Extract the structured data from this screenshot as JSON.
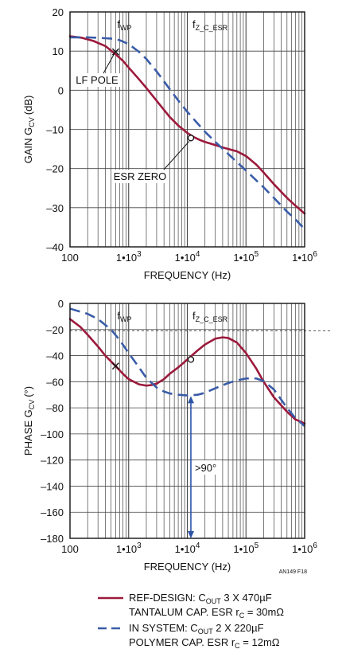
{
  "colors": {
    "ref": "#9c1a3c",
    "sys": "#3a5ca8",
    "annotation_arrow": "#2b53a8",
    "grid": "#444444"
  },
  "chart_data": [
    {
      "type": "line",
      "title": "",
      "xlabel": "FREQUENCY (Hz)",
      "ylabel": "GAIN G",
      "ylabel_sub": "CV",
      "ylabel_unit": "(dB)",
      "xscale": "log",
      "xlim": [
        100,
        1000000
      ],
      "ylim": [
        -40,
        20
      ],
      "yticks": [
        20,
        10,
        0,
        -10,
        -20,
        -30,
        -40
      ],
      "yticklabels": [
        "20",
        "10",
        "0",
        "–10",
        "–20",
        "–30",
        "–40"
      ],
      "xticks": [
        100,
        1000,
        10000,
        100000,
        1000000
      ],
      "xticklabels": [
        {
          "base": "100",
          "exp": ""
        },
        {
          "base": "1•10",
          "exp": "3"
        },
        {
          "base": "1•10",
          "exp": "4"
        },
        {
          "base": "1•10",
          "exp": "5"
        },
        {
          "base": "1•10",
          "exp": "6"
        }
      ],
      "grid": true,
      "series": [
        {
          "name": "REF-DESIGN",
          "x": [
            100,
            160,
            250,
            400,
            600,
            800,
            1000,
            1500,
            2000,
            3000,
            4000,
            5000,
            7000,
            10000,
            13000,
            17000,
            20000,
            30000,
            40000,
            50000,
            70000,
            100000,
            150000,
            200000,
            300000,
            500000,
            700000,
            1000000
          ],
          "y": [
            13.8,
            13.4,
            12.6,
            11.3,
            9.2,
            7.5,
            5.8,
            2.8,
            0.6,
            -2.7,
            -5,
            -6.8,
            -9,
            -10.9,
            -12,
            -12.8,
            -13.2,
            -14,
            -14.6,
            -15,
            -15.6,
            -16.8,
            -19,
            -21,
            -24,
            -27.5,
            -29.5,
            -31.5
          ]
        },
        {
          "name": "IN SYSTEM",
          "x": [
            100,
            200,
            300,
            500,
            700,
            1000,
            1500,
            2000,
            3000,
            4000,
            5000,
            7000,
            10000,
            15000,
            20000,
            30000,
            50000,
            100000,
            200000,
            300000,
            500000,
            700000,
            1000000
          ],
          "y": [
            13.5,
            13.5,
            13.4,
            13.2,
            12.8,
            11.8,
            9.8,
            8,
            4.8,
            2.3,
            0.3,
            -2.6,
            -5.5,
            -8.5,
            -10.6,
            -13.2,
            -16.3,
            -20.5,
            -24.8,
            -27.5,
            -31,
            -33,
            -35.5
          ]
        }
      ],
      "annotations": {
        "fwp": {
          "label": "f",
          "sub": "WP",
          "x": 600
        },
        "fz": {
          "label": "f",
          "sub": "Z_C_ESR",
          "x": 11500
        },
        "lf_pole": {
          "label": "LF POLE",
          "x": 600,
          "y": 9.8
        },
        "esr_zero": {
          "label": "ESR ZERO",
          "x": 11500,
          "y": -12.2
        }
      }
    },
    {
      "type": "line",
      "title": "",
      "xlabel": "FREQUENCY (Hz)",
      "ylabel": "PHASE G",
      "ylabel_sub": "CV",
      "ylabel_unit": "(°)",
      "xscale": "log",
      "xlim": [
        100,
        1000000
      ],
      "ylim": [
        -180,
        0
      ],
      "yticks": [
        0,
        -20,
        -40,
        -60,
        -80,
        -100,
        -120,
        -140,
        -160,
        -180
      ],
      "yticklabels": [
        "0",
        "–20",
        "–40",
        "–60",
        "–80",
        "–100",
        "–120",
        "–140",
        "–160",
        "–180"
      ],
      "xticks": [
        100,
        1000,
        10000,
        100000,
        1000000
      ],
      "xticklabels": [
        {
          "base": "100",
          "exp": ""
        },
        {
          "base": "1•10",
          "exp": "3"
        },
        {
          "base": "1•10",
          "exp": "4"
        },
        {
          "base": "1•10",
          "exp": "5"
        },
        {
          "base": "1•10",
          "exp": "6"
        }
      ],
      "grid": true,
      "reference_line": -21,
      "series": [
        {
          "name": "REF-DESIGN",
          "x": [
            100,
            150,
            200,
            300,
            400,
            600,
            800,
            1000,
            1500,
            2000,
            2500,
            3000,
            4000,
            5000,
            7000,
            10000,
            15000,
            20000,
            30000,
            40000,
            50000,
            70000,
            100000,
            150000,
            200000,
            300000,
            500000,
            700000,
            1000000
          ],
          "y": [
            -12,
            -18,
            -24,
            -33,
            -40,
            -48,
            -54,
            -58,
            -62,
            -63,
            -62.5,
            -61.5,
            -58,
            -54,
            -49,
            -43,
            -36,
            -31.5,
            -27,
            -26,
            -26.5,
            -30,
            -38,
            -50,
            -60,
            -72,
            -83,
            -89,
            -92
          ]
        },
        {
          "name": "IN SYSTEM",
          "x": [
            100,
            200,
            300,
            500,
            700,
            1000,
            1500,
            2000,
            3000,
            4000,
            5000,
            7000,
            10000,
            15000,
            20000,
            30000,
            50000,
            70000,
            100000,
            150000,
            200000,
            300000,
            500000,
            700000,
            1000000
          ],
          "y": [
            -4,
            -8,
            -12,
            -20,
            -28,
            -38,
            -49,
            -57,
            -64.5,
            -67.5,
            -69,
            -70,
            -70.5,
            -70,
            -68.5,
            -65,
            -61,
            -59,
            -57.5,
            -57.5,
            -59.5,
            -66,
            -80,
            -88,
            -94
          ]
        }
      ],
      "annotations": {
        "fwp": {
          "label": "f",
          "sub": "WP",
          "x": 600
        },
        "fz": {
          "label": "f",
          "sub": "Z_C_ESR",
          "x": 11500
        },
        "cross_marker": {
          "x": 600,
          "y": -48
        },
        "circle_marker": {
          "x": 11500,
          "y": -43
        },
        "margin_arrow": {
          "label": ">90°",
          "x": 11500,
          "y_from": -71,
          "y_to": -180
        }
      }
    }
  ],
  "figure_id": "AN149 F18",
  "legend": [
    {
      "series": "REF-DESIGN",
      "line1_pre": "REF-DESIGN: C",
      "line1_sub": "OUT",
      "line1_post": " 3 X 470µF",
      "line2_pre": "TANTALUM CAP. ESR r",
      "line2_sub": "C",
      "line2_post": " = 30mΩ"
    },
    {
      "series": "IN SYSTEM",
      "line1_pre": "IN SYSTEM: C",
      "line1_sub": "OUT",
      "line1_post": " 2 X 220µF",
      "line2_pre": "POLYMER CAP. ESR r",
      "line2_sub": "C",
      "line2_post": " = 12mΩ"
    }
  ]
}
